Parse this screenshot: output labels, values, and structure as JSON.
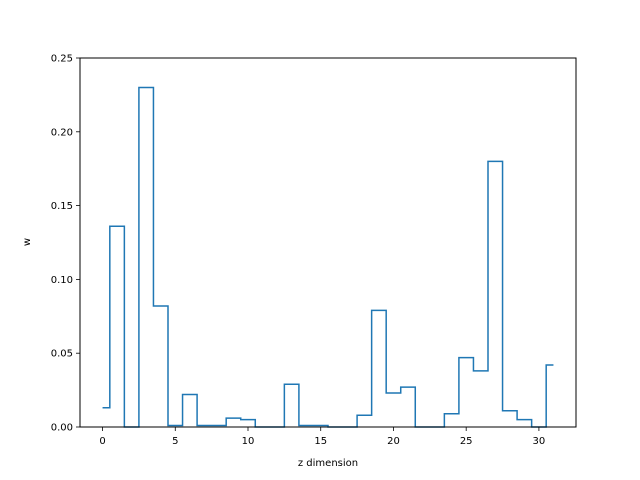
{
  "chart_data": {
    "type": "line",
    "drawstyle": "steps-mid",
    "title": "",
    "xlabel": "z dimension",
    "ylabel": "w",
    "xlim": [
      -1.55,
      32.55
    ],
    "ylim": [
      0,
      0.25
    ],
    "grid": false,
    "line_color": "#1f77b4",
    "x_ticks": [
      0,
      5,
      10,
      15,
      20,
      25,
      30
    ],
    "x_tick_labels": [
      "0",
      "5",
      "10",
      "15",
      "20",
      "25",
      "30"
    ],
    "y_ticks": [
      0,
      0.05,
      0.1,
      0.15,
      0.2,
      0.25
    ],
    "y_tick_labels": [
      "0.00",
      "0.05",
      "0.10",
      "0.15",
      "0.20",
      "0.25"
    ],
    "series": [
      {
        "x": [
          0,
          1,
          2,
          3,
          4,
          5,
          6,
          7,
          8,
          9,
          10,
          11,
          12,
          13,
          14,
          15,
          16,
          17,
          18,
          19,
          20,
          21,
          22,
          23,
          24,
          25,
          26,
          27,
          28,
          29,
          30,
          31
        ],
        "values": [
          0.013,
          0.136,
          0.0,
          0.23,
          0.082,
          0.001,
          0.022,
          0.001,
          0.001,
          0.006,
          0.005,
          0.0,
          0.0,
          0.029,
          0.001,
          0.001,
          0.0,
          0.0,
          0.008,
          0.079,
          0.023,
          0.027,
          0.0,
          0.0,
          0.009,
          0.047,
          0.038,
          0.18,
          0.011,
          0.005,
          0.0,
          0.042
        ]
      }
    ]
  }
}
